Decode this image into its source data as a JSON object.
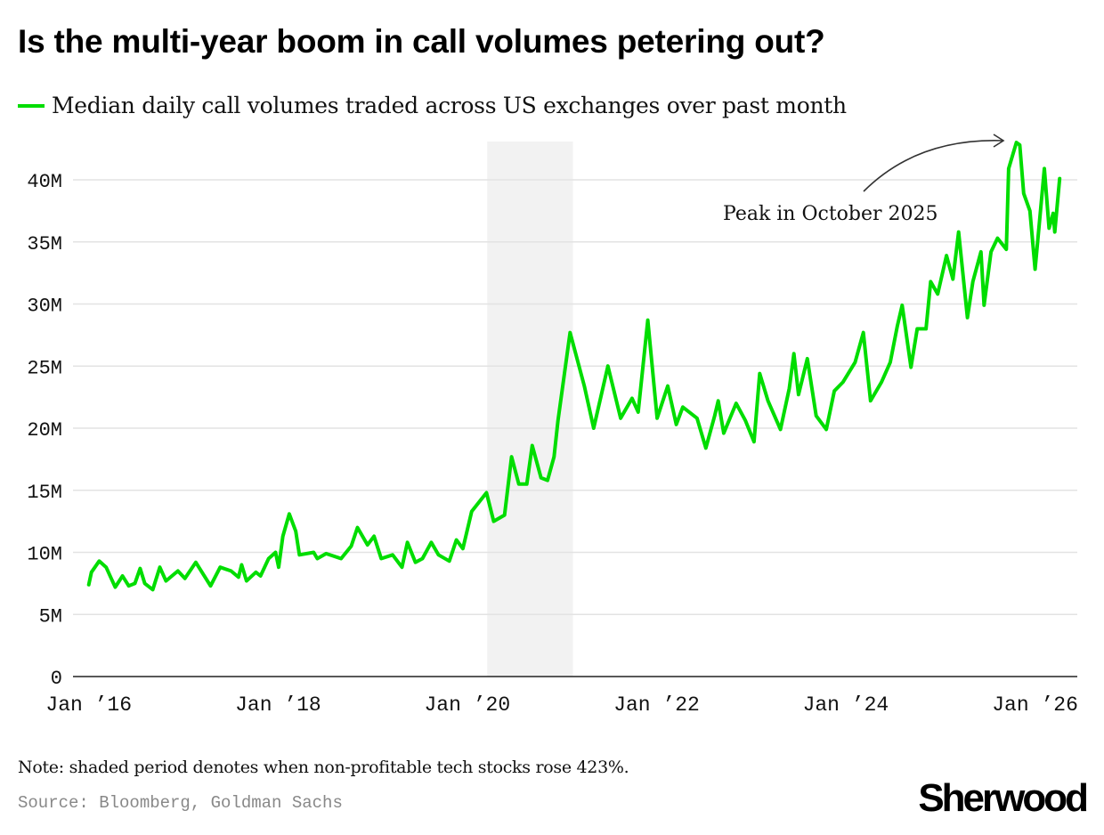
{
  "colors": {
    "line": "#00dd00",
    "shade": "#f2f2f2",
    "grid": "#e3e3e3"
  },
  "chart_data": {
    "type": "line",
    "title": "Is the multi-year boom in call volumes petering out?",
    "series": [
      {
        "name": "Median daily call volumes traded across US exchanges over past month",
        "points": [
          [
            "2016-01-01",
            7.4
          ],
          [
            "2016-01-11",
            8.4
          ],
          [
            "2016-02-10",
            9.3
          ],
          [
            "2016-03-08",
            8.8
          ],
          [
            "2016-04-12",
            7.2
          ],
          [
            "2016-05-10",
            8.1
          ],
          [
            "2016-06-03",
            7.3
          ],
          [
            "2016-06-27",
            7.5
          ],
          [
            "2016-07-17",
            8.7
          ],
          [
            "2016-08-04",
            7.5
          ],
          [
            "2016-09-04",
            7.0
          ],
          [
            "2016-10-01",
            8.8
          ],
          [
            "2016-10-25",
            7.7
          ],
          [
            "2016-12-10",
            8.5
          ],
          [
            "2017-01-06",
            7.9
          ],
          [
            "2017-02-17",
            9.2
          ],
          [
            "2017-04-15",
            7.3
          ],
          [
            "2017-05-22",
            8.8
          ],
          [
            "2017-07-03",
            8.5
          ],
          [
            "2017-08-01",
            8.0
          ],
          [
            "2017-08-13",
            9.0
          ],
          [
            "2017-09-01",
            7.7
          ],
          [
            "2017-10-07",
            8.4
          ],
          [
            "2017-10-25",
            8.1
          ],
          [
            "2017-11-25",
            9.5
          ],
          [
            "2017-12-22",
            10.0
          ],
          [
            "2018-01-03",
            8.8
          ],
          [
            "2018-01-19",
            11.3
          ],
          [
            "2018-02-13",
            13.1
          ],
          [
            "2018-03-10",
            11.7
          ],
          [
            "2018-03-24",
            9.8
          ],
          [
            "2018-05-18",
            10.0
          ],
          [
            "2018-06-01",
            9.5
          ],
          [
            "2018-07-05",
            9.9
          ],
          [
            "2018-09-01",
            9.5
          ],
          [
            "2018-10-10",
            10.5
          ],
          [
            "2018-11-03",
            12.0
          ],
          [
            "2018-12-12",
            10.6
          ],
          [
            "2019-01-06",
            11.3
          ],
          [
            "2019-02-03",
            9.5
          ],
          [
            "2019-03-19",
            9.8
          ],
          [
            "2019-04-24",
            8.8
          ],
          [
            "2019-05-15",
            10.8
          ],
          [
            "2019-06-15",
            9.2
          ],
          [
            "2019-07-12",
            9.5
          ],
          [
            "2019-08-15",
            10.8
          ],
          [
            "2019-09-12",
            9.8
          ],
          [
            "2019-10-24",
            9.3
          ],
          [
            "2019-11-20",
            11.0
          ],
          [
            "2019-12-15",
            10.3
          ],
          [
            "2020-01-18",
            13.3
          ],
          [
            "2020-03-15",
            14.8
          ],
          [
            "2020-04-12",
            12.5
          ],
          [
            "2020-05-24",
            13.0
          ],
          [
            "2020-06-20",
            17.7
          ],
          [
            "2020-07-18",
            15.5
          ],
          [
            "2020-08-18",
            15.5
          ],
          [
            "2020-09-08",
            18.6
          ],
          [
            "2020-10-12",
            16.0
          ],
          [
            "2020-11-06",
            15.8
          ],
          [
            "2020-12-01",
            17.7
          ],
          [
            "2020-12-16",
            20.6
          ],
          [
            "2021-02-01",
            27.7
          ],
          [
            "2021-03-28",
            23.4
          ],
          [
            "2021-05-03",
            20.0
          ],
          [
            "2021-06-27",
            25.0
          ],
          [
            "2021-08-15",
            20.8
          ],
          [
            "2021-09-28",
            22.4
          ],
          [
            "2021-10-22",
            21.3
          ],
          [
            "2021-11-28",
            28.7
          ],
          [
            "2022-01-03",
            20.8
          ],
          [
            "2022-02-13",
            23.4
          ],
          [
            "2022-03-18",
            20.3
          ],
          [
            "2022-04-12",
            21.7
          ],
          [
            "2022-06-06",
            20.8
          ],
          [
            "2022-07-10",
            18.4
          ],
          [
            "2022-08-13",
            21.0
          ],
          [
            "2022-08-27",
            22.2
          ],
          [
            "2022-09-17",
            19.6
          ],
          [
            "2022-11-04",
            22.0
          ],
          [
            "2022-12-10",
            20.6
          ],
          [
            "2023-01-12",
            18.9
          ],
          [
            "2023-02-03",
            24.4
          ],
          [
            "2023-03-07",
            22.2
          ],
          [
            "2023-04-24",
            19.9
          ],
          [
            "2023-05-28",
            23.2
          ],
          [
            "2023-06-15",
            26.0
          ],
          [
            "2023-07-03",
            22.7
          ],
          [
            "2023-08-06",
            25.6
          ],
          [
            "2023-09-09",
            21.0
          ],
          [
            "2023-10-18",
            19.9
          ],
          [
            "2023-11-18",
            23.0
          ],
          [
            "2023-12-21",
            23.7
          ],
          [
            "2024-02-06",
            25.3
          ],
          [
            "2024-03-09",
            27.7
          ],
          [
            "2024-04-06",
            22.2
          ],
          [
            "2024-05-18",
            23.7
          ],
          [
            "2024-06-21",
            25.3
          ],
          [
            "2024-07-18",
            28.2
          ],
          [
            "2024-08-06",
            29.9
          ],
          [
            "2024-09-09",
            24.9
          ],
          [
            "2024-10-03",
            28.0
          ],
          [
            "2024-11-06",
            28.0
          ],
          [
            "2024-11-24",
            31.8
          ],
          [
            "2024-12-21",
            30.8
          ],
          [
            "2025-01-24",
            33.9
          ],
          [
            "2025-02-18",
            32.0
          ],
          [
            "2025-03-12",
            35.8
          ],
          [
            "2025-04-15",
            28.9
          ],
          [
            "2025-05-06",
            31.8
          ],
          [
            "2025-06-06",
            34.2
          ],
          [
            "2025-06-18",
            29.9
          ],
          [
            "2025-07-15",
            34.2
          ],
          [
            "2025-08-09",
            35.3
          ],
          [
            "2025-09-12",
            34.4
          ],
          [
            "2025-09-21",
            40.9
          ],
          [
            "2025-10-21",
            43.0
          ],
          [
            "2025-11-03",
            42.8
          ],
          [
            "2025-11-18",
            38.9
          ],
          [
            "2025-12-12",
            37.5
          ],
          [
            "2026-01-01",
            32.8
          ],
          [
            "2026-01-18",
            36.6
          ],
          [
            "2026-02-06",
            40.9
          ],
          [
            "2026-02-24",
            36.1
          ],
          [
            "2026-03-12",
            37.3
          ],
          [
            "2026-03-18",
            35.8
          ],
          [
            "2026-04-06",
            40.1
          ]
        ]
      }
    ],
    "shaded_period": [
      "2020-03-18",
      "2021-02-12"
    ],
    "xlim": [
      "2015-11-01",
      "2026-06-13"
    ],
    "ylim": [
      0,
      43
    ],
    "yticks": [
      0,
      5,
      10,
      15,
      20,
      25,
      30,
      35,
      40
    ],
    "ytick_labels": [
      "0",
      "5M",
      "10M",
      "15M",
      "20M",
      "25M",
      "30M",
      "35M",
      "40M"
    ],
    "xticks": [
      "2016-01-01",
      "2018-01-01",
      "2020-01-01",
      "2022-01-01",
      "2024-01-01",
      "2026-01-01"
    ],
    "xtick_labels": [
      "Jan ’16",
      "Jan ’18",
      "Jan ’20",
      "Jan ’22",
      "Jan ’24",
      "Jan ’26"
    ],
    "grid": true,
    "legend_position": "top-left",
    "annotation": {
      "text": "Peak in October 2025",
      "target": [
        "2025-10-21",
        43.0
      ]
    }
  },
  "footer": {
    "note": "Note: shaded period denotes when non-profitable tech stocks rose 423%.",
    "source": "Source: Bloomberg, Goldman Sachs",
    "logo": "Sherwood"
  }
}
